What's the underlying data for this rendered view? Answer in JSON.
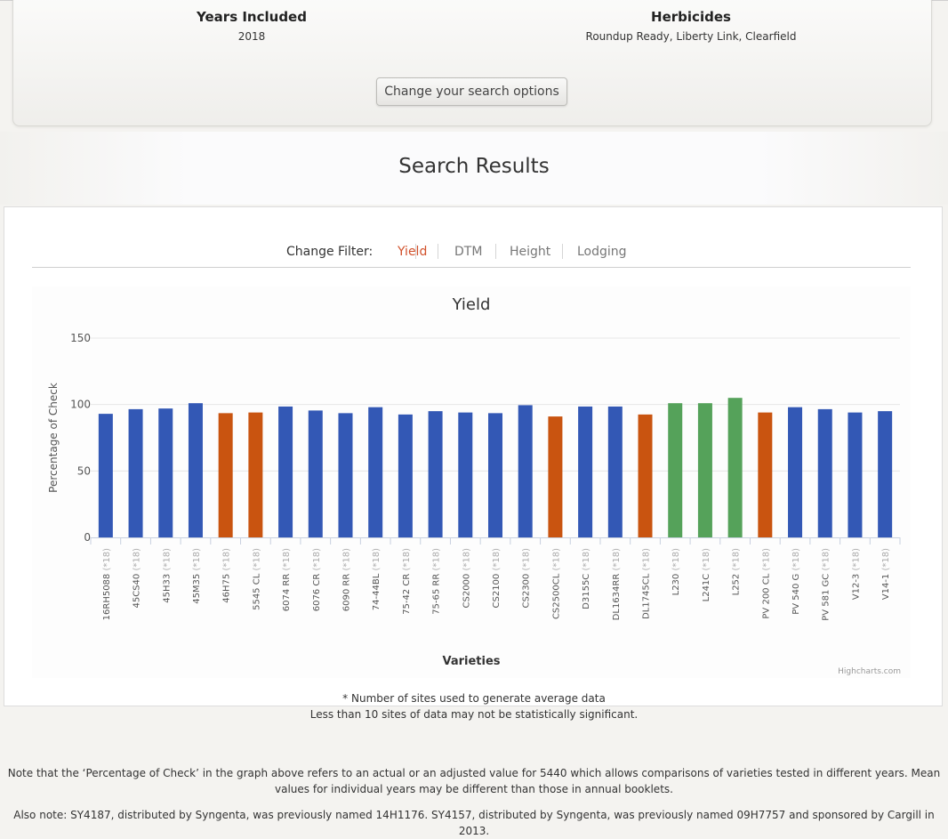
{
  "summary": {
    "years_title": "Years Included",
    "years_value": "2018",
    "herbicides_title": "Herbicides",
    "herbicides_value": "Roundup Ready, Liberty Link, Clearfield",
    "change_button": "Change your search options"
  },
  "results_title": "Search Results",
  "filter": {
    "label": "Change Filter:",
    "tabs": [
      "Yield",
      "DTM",
      "Height",
      "Lodging"
    ],
    "active": "Yield"
  },
  "colors": {
    "blue": "#3358b5",
    "orange": "#c95410",
    "green": "#55a25a",
    "active_tab": "#d1502a"
  },
  "chart_data": {
    "type": "bar",
    "title": "Yield",
    "xlabel": "Varieties",
    "ylabel": "Percentage of Check",
    "ylim": [
      0,
      150
    ],
    "yticks": [
      0,
      50,
      100,
      150
    ],
    "grid": true,
    "credit": "Highcharts.com",
    "categories": [
      "16RH5088 (*18)",
      "45CS40 (*18)",
      "45H33 (*18)",
      "45M35 (*18)",
      "46H75 (*18)",
      "5545 CL (*18)",
      "6074 RR (*18)",
      "6076 CR (*18)",
      "6090 RR (*18)",
      "74-44BL (*18)",
      "75-42 CR (*18)",
      "75-65 RR (*18)",
      "CS2000 (*18)",
      "CS2100 (*18)",
      "CS2300 (*18)",
      "CS2500CL (*18)",
      "D3155C (*18)",
      "DL1634RR (*18)",
      "DL1745CL (*18)",
      "L230 (*18)",
      "L241C (*18)",
      "L252 (*18)",
      "PV 200 CL (*18)",
      "PV 540 G (*18)",
      "PV 581 GC (*18)",
      "V12-3 (*18)",
      "V14-1 (*18)"
    ],
    "values": [
      93,
      96.5,
      97,
      101,
      93.5,
      94,
      98.5,
      95.5,
      93.5,
      98,
      92.5,
      95,
      94,
      93.5,
      99.5,
      91,
      98.5,
      98.5,
      92.5,
      101,
      101,
      105,
      94,
      98,
      96.5,
      94,
      95
    ],
    "bar_colors": [
      "blue",
      "blue",
      "blue",
      "blue",
      "orange",
      "orange",
      "blue",
      "blue",
      "blue",
      "blue",
      "blue",
      "blue",
      "blue",
      "blue",
      "blue",
      "orange",
      "blue",
      "blue",
      "orange",
      "green",
      "green",
      "green",
      "orange",
      "blue",
      "blue",
      "blue",
      "blue"
    ]
  },
  "notes": {
    "sites_line1": "* Number of sites used to generate average data",
    "sites_line2": "Less than 10 sites of data may not be statistically significant.",
    "check_note_line1": "Note that the ‘Percentage of Check’ in the graph above refers to an actual or an adjusted value for 5440 which allows comparisons of varieties tested in different years. Mean",
    "check_note_line2": "values for individual years may be different than those in annual booklets.",
    "also_note": "Also note: SY4187, distributed by Syngenta, was previously named 14H1176. SY4157, distributed by Syngenta, was previously named 09H7757 and sponsored by Cargill in 2013."
  }
}
